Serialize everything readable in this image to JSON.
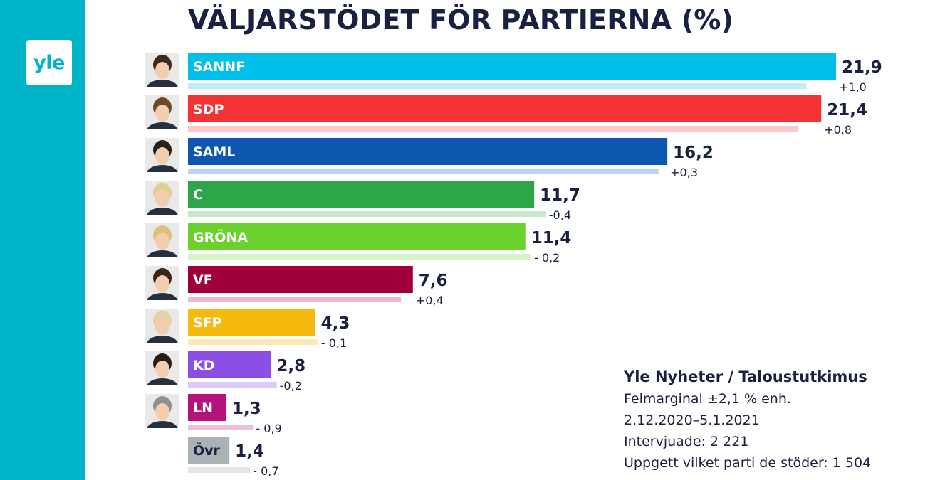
{
  "logo": {
    "text": "yle"
  },
  "colors": {
    "sidebar": "#00b4c8",
    "title": "#1a2140",
    "avatar_bg": "#e9e9e9"
  },
  "info": {
    "source": "Yle Nyheter / Taloustutkimus",
    "margin": "Felmarginal ±2,1 % enh.",
    "period": "2.12.2020–5.1.2021",
    "interviewed": "Intervjuade: 2 221",
    "stated": "Uppgett vilket parti de stöder: 1 504"
  },
  "chart_data": {
    "type": "bar",
    "orientation": "horizontal",
    "title": "VÄLJARSTÖDET FÖR PARTIERNA (%)",
    "xlim": [
      0,
      21.9
    ],
    "categories": [
      "SANNF",
      "SDP",
      "SAML",
      "C",
      "GRÖNA",
      "VF",
      "SFP",
      "KD",
      "LN",
      "Övr"
    ],
    "values": [
      21.9,
      21.4,
      16.2,
      11.7,
      11.4,
      7.6,
      4.3,
      2.8,
      1.3,
      1.4
    ],
    "value_labels": [
      "21,9",
      "21,4",
      "16,2",
      "11,7",
      "11,4",
      "7,6",
      "4,3",
      "2,8",
      "1,3",
      "1,4"
    ],
    "previous_values": [
      20.9,
      20.6,
      15.9,
      12.1,
      11.6,
      7.2,
      4.4,
      3.0,
      2.2,
      2.1
    ],
    "change_labels": [
      "+1,0",
      "+0,8",
      "+0,3",
      "-0,4",
      "- 0,2",
      "+0,4",
      "- 0,1",
      "-0,2",
      "- 0,9",
      "- 0,7"
    ],
    "colors": [
      "#00c0ea",
      "#f43335",
      "#0d57b0",
      "#2da64a",
      "#6ad12d",
      "#9f0039",
      "#f6b90d",
      "#8c4fe6",
      "#b3137a",
      "#abb2b6"
    ],
    "light_colors": [
      "#bfeefa",
      "#fcc8c8",
      "#bdd2ec",
      "#c7e7cf",
      "#d6f2c6",
      "#ecb9cd",
      "#fde9b7",
      "#dccbf8",
      "#efc0dc",
      "#e4e7e9"
    ],
    "label_colors": [
      "#ffffff",
      "#ffffff",
      "#ffffff",
      "#ffffff",
      "#ffffff",
      "#ffffff",
      "#ffffff",
      "#ffffff",
      "#ffffff",
      "#1a2140"
    ],
    "has_avatar": [
      true,
      true,
      true,
      true,
      true,
      true,
      true,
      true,
      true,
      false
    ],
    "hair_colors": [
      "#3b2a1e",
      "#6b4a2a",
      "#2b2118",
      "#e2cf95",
      "#dbc27c",
      "#3a2516",
      "#e6d2a0",
      "#2a1c14",
      "#8f8f8f",
      "#000000"
    ],
    "grid": false,
    "legend": "none"
  }
}
